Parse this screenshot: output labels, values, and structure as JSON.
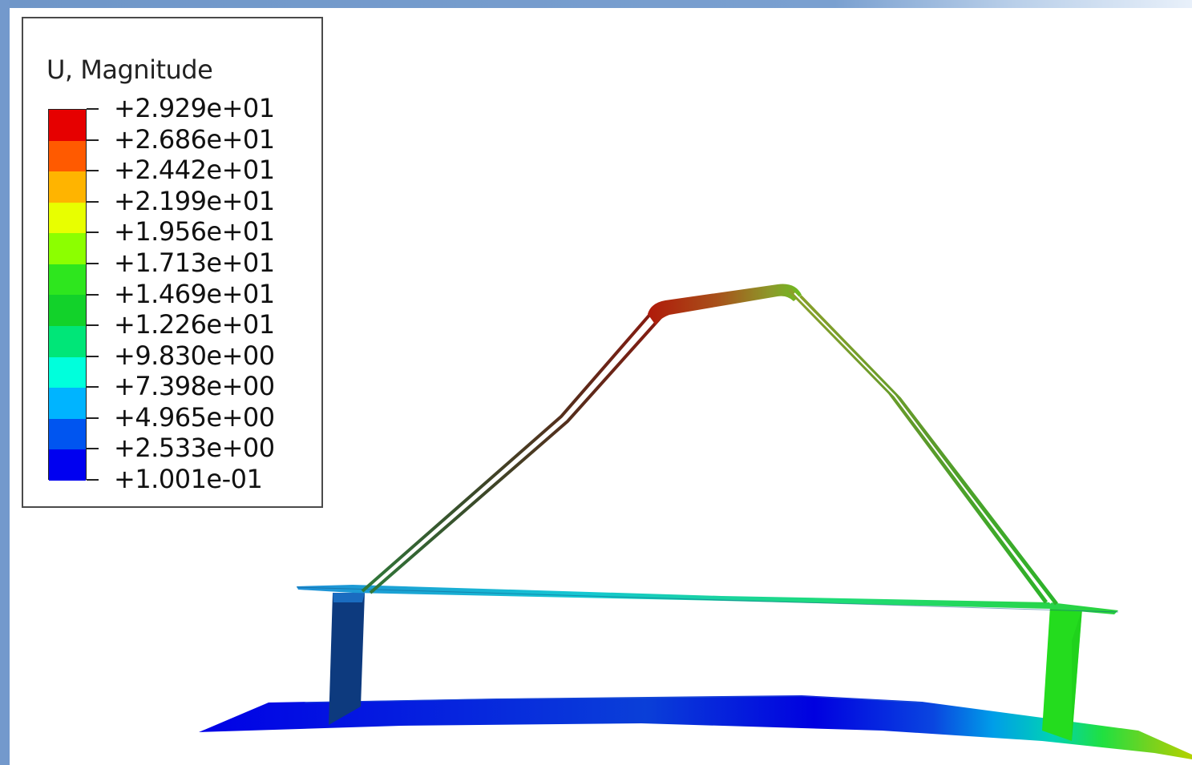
{
  "legend": {
    "title": "U, Magnitude",
    "values": [
      "+2.929e+01",
      "+2.686e+01",
      "+2.442e+01",
      "+2.199e+01",
      "+1.956e+01",
      "+1.713e+01",
      "+1.469e+01",
      "+1.226e+01",
      "+9.830e+00",
      "+7.398e+00",
      "+4.965e+00",
      "+2.533e+00",
      "+1.001e-01"
    ],
    "colors": [
      "#e60000",
      "#ff5a00",
      "#ffb400",
      "#e8ff00",
      "#8cff00",
      "#2ee61e",
      "#12d22a",
      "#00e678",
      "#00ffdc",
      "#00b4ff",
      "#0055f0",
      "#0000f0"
    ]
  }
}
